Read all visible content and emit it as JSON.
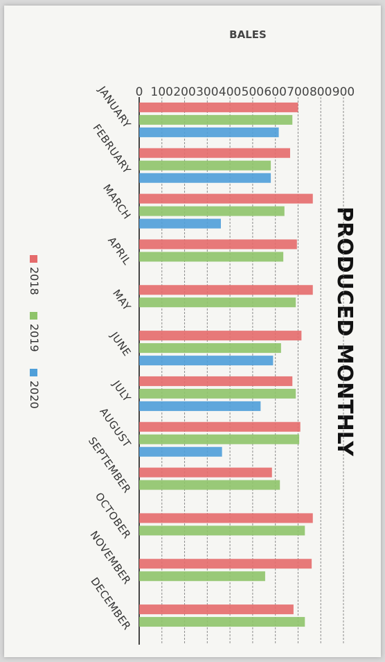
{
  "chart_data": {
    "type": "bar",
    "orientation": "horizontal",
    "title": "PRODUCED MONTHLY",
    "xlabel": "",
    "ylabel": "BALES",
    "ylim": [
      0,
      900
    ],
    "ticks": [
      0,
      100,
      200,
      300,
      400,
      500,
      600,
      700,
      800,
      900
    ],
    "tick_labels": [
      "0",
      "100",
      "200",
      "300",
      "400",
      "500",
      "600",
      "700",
      "800",
      "900"
    ],
    "categories": [
      "JANUARY",
      "FEBRUARY",
      "MARCH",
      "APRIL",
      "MAY",
      "JUNE",
      "JULY",
      "AUGUST",
      "SEPTEMBER",
      "OCTOBER",
      "NOVEMBER",
      "DECEMBER"
    ],
    "series": [
      {
        "name": "2018",
        "color": "#e56b6b",
        "values": [
          700,
          665,
          765,
          695,
          765,
          715,
          675,
          710,
          585,
          765,
          760,
          680
        ]
      },
      {
        "name": "2019",
        "color": "#8fc46a",
        "values": [
          675,
          580,
          640,
          635,
          690,
          625,
          690,
          705,
          620,
          730,
          555,
          730
        ]
      },
      {
        "name": "2020",
        "color": "#4f9fd9",
        "values": [
          615,
          580,
          360,
          null,
          null,
          590,
          535,
          365,
          null,
          null,
          null,
          null
        ]
      }
    ],
    "grid": true,
    "legend_position": "bottom"
  }
}
